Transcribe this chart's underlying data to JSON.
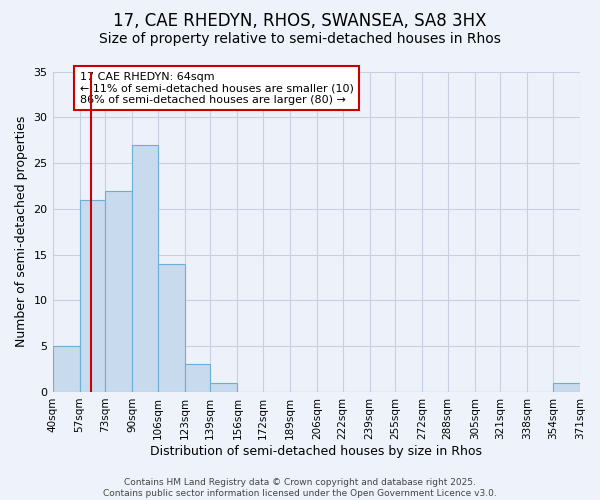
{
  "title1": "17, CAE RHEDYN, RHOS, SWANSEA, SA8 3HX",
  "title2": "Size of property relative to semi-detached houses in Rhos",
  "xlabel": "Distribution of semi-detached houses by size in Rhos",
  "ylabel": "Number of semi-detached properties",
  "bin_labels": [
    "40sqm",
    "57sqm",
    "73sqm",
    "90sqm",
    "106sqm",
    "123sqm",
    "139sqm",
    "156sqm",
    "172sqm",
    "189sqm",
    "206sqm",
    "222sqm",
    "239sqm",
    "255sqm",
    "272sqm",
    "288sqm",
    "305sqm",
    "321sqm",
    "338sqm",
    "354sqm",
    "371sqm"
  ],
  "bar_values": [
    5,
    21,
    22,
    27,
    14,
    3,
    1,
    0,
    0,
    0,
    0,
    0,
    0,
    0,
    0,
    0,
    0,
    0,
    0,
    1
  ],
  "bin_edges": [
    40,
    57,
    73,
    90,
    106,
    123,
    139,
    156,
    172,
    189,
    206,
    222,
    239,
    255,
    272,
    288,
    305,
    321,
    338,
    354,
    371
  ],
  "bar_color": "#c8daee",
  "bar_edge_color": "#6baed6",
  "vline_x": 64,
  "vline_color": "#cc0000",
  "annotation_text": "17 CAE RHEDYN: 64sqm\n← 11% of semi-detached houses are smaller (10)\n86% of semi-detached houses are larger (80) →",
  "annotation_box_color": "#ffffff",
  "annotation_box_edge": "#cc0000",
  "ylim": [
    0,
    35
  ],
  "yticks": [
    0,
    5,
    10,
    15,
    20,
    25,
    30,
    35
  ],
  "footer_text": "Contains HM Land Registry data © Crown copyright and database right 2025.\nContains public sector information licensed under the Open Government Licence v3.0.",
  "bg_color": "#eef2fb",
  "plot_bg_color": "#edf1fa",
  "grid_color": "#c8cfe0",
  "title_fontsize": 12,
  "subtitle_fontsize": 10,
  "axis_label_fontsize": 9,
  "tick_fontsize": 7.5,
  "annotation_fontsize": 8,
  "footer_fontsize": 6.5
}
